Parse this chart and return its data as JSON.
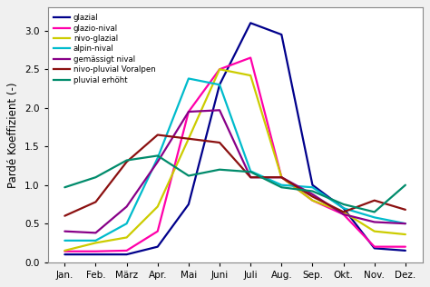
{
  "months": [
    "Jan.",
    "Feb.",
    "März",
    "Apr.",
    "Mai",
    "Juni",
    "Juli",
    "Aug.",
    "Sep.",
    "Okt.",
    "Nov.",
    "Dez."
  ],
  "series": {
    "glazial": {
      "color": "#00008B",
      "values": [
        0.1,
        0.1,
        0.1,
        0.2,
        0.75,
        2.3,
        3.1,
        2.95,
        1.0,
        0.7,
        0.18,
        0.15
      ]
    },
    "glazio-nival": {
      "color": "#FF00AA",
      "values": [
        0.14,
        0.14,
        0.15,
        0.4,
        1.95,
        2.5,
        2.65,
        1.1,
        0.8,
        0.62,
        0.2,
        0.2
      ]
    },
    "nivo-glazial": {
      "color": "#CCCC00",
      "values": [
        0.15,
        0.25,
        0.32,
        0.72,
        1.6,
        2.5,
        2.42,
        1.1,
        0.8,
        0.65,
        0.4,
        0.36
      ]
    },
    "alpin-nival": {
      "color": "#00BBCC",
      "values": [
        0.28,
        0.28,
        0.5,
        1.35,
        2.38,
        2.3,
        1.18,
        1.0,
        0.97,
        0.7,
        0.58,
        0.5
      ]
    },
    "gemässigt nival": {
      "color": "#880088",
      "values": [
        0.4,
        0.38,
        0.72,
        1.3,
        1.95,
        1.97,
        1.1,
        1.1,
        0.88,
        0.62,
        0.52,
        0.5
      ]
    },
    "nivo-pluvial Voralpen": {
      "color": "#8B1010",
      "values": [
        0.6,
        0.78,
        1.3,
        1.65,
        1.6,
        1.55,
        1.1,
        1.1,
        0.85,
        0.65,
        0.8,
        0.68
      ]
    },
    "pluvial erhöht": {
      "color": "#008B6B",
      "values": [
        0.97,
        1.1,
        1.32,
        1.38,
        1.12,
        1.2,
        1.17,
        0.97,
        0.92,
        0.75,
        0.65,
        1.0
      ]
    }
  },
  "ylabel": "Pardé Koeffizient (-)",
  "ylim": [
    0,
    3.3
  ],
  "yticks": [
    0.0,
    0.5,
    1.0,
    1.5,
    2.0,
    2.5,
    3.0
  ],
  "legend_order": [
    "glazial",
    "glazio-nival",
    "nivo-glazial",
    "alpin-nival",
    "gemässigt nival",
    "nivo-pluvial Voralpen",
    "pluvial erhöht"
  ],
  "bg_color": "#f0f0f0",
  "plot_bg_color": "#ffffff",
  "linewidth": 1.6
}
